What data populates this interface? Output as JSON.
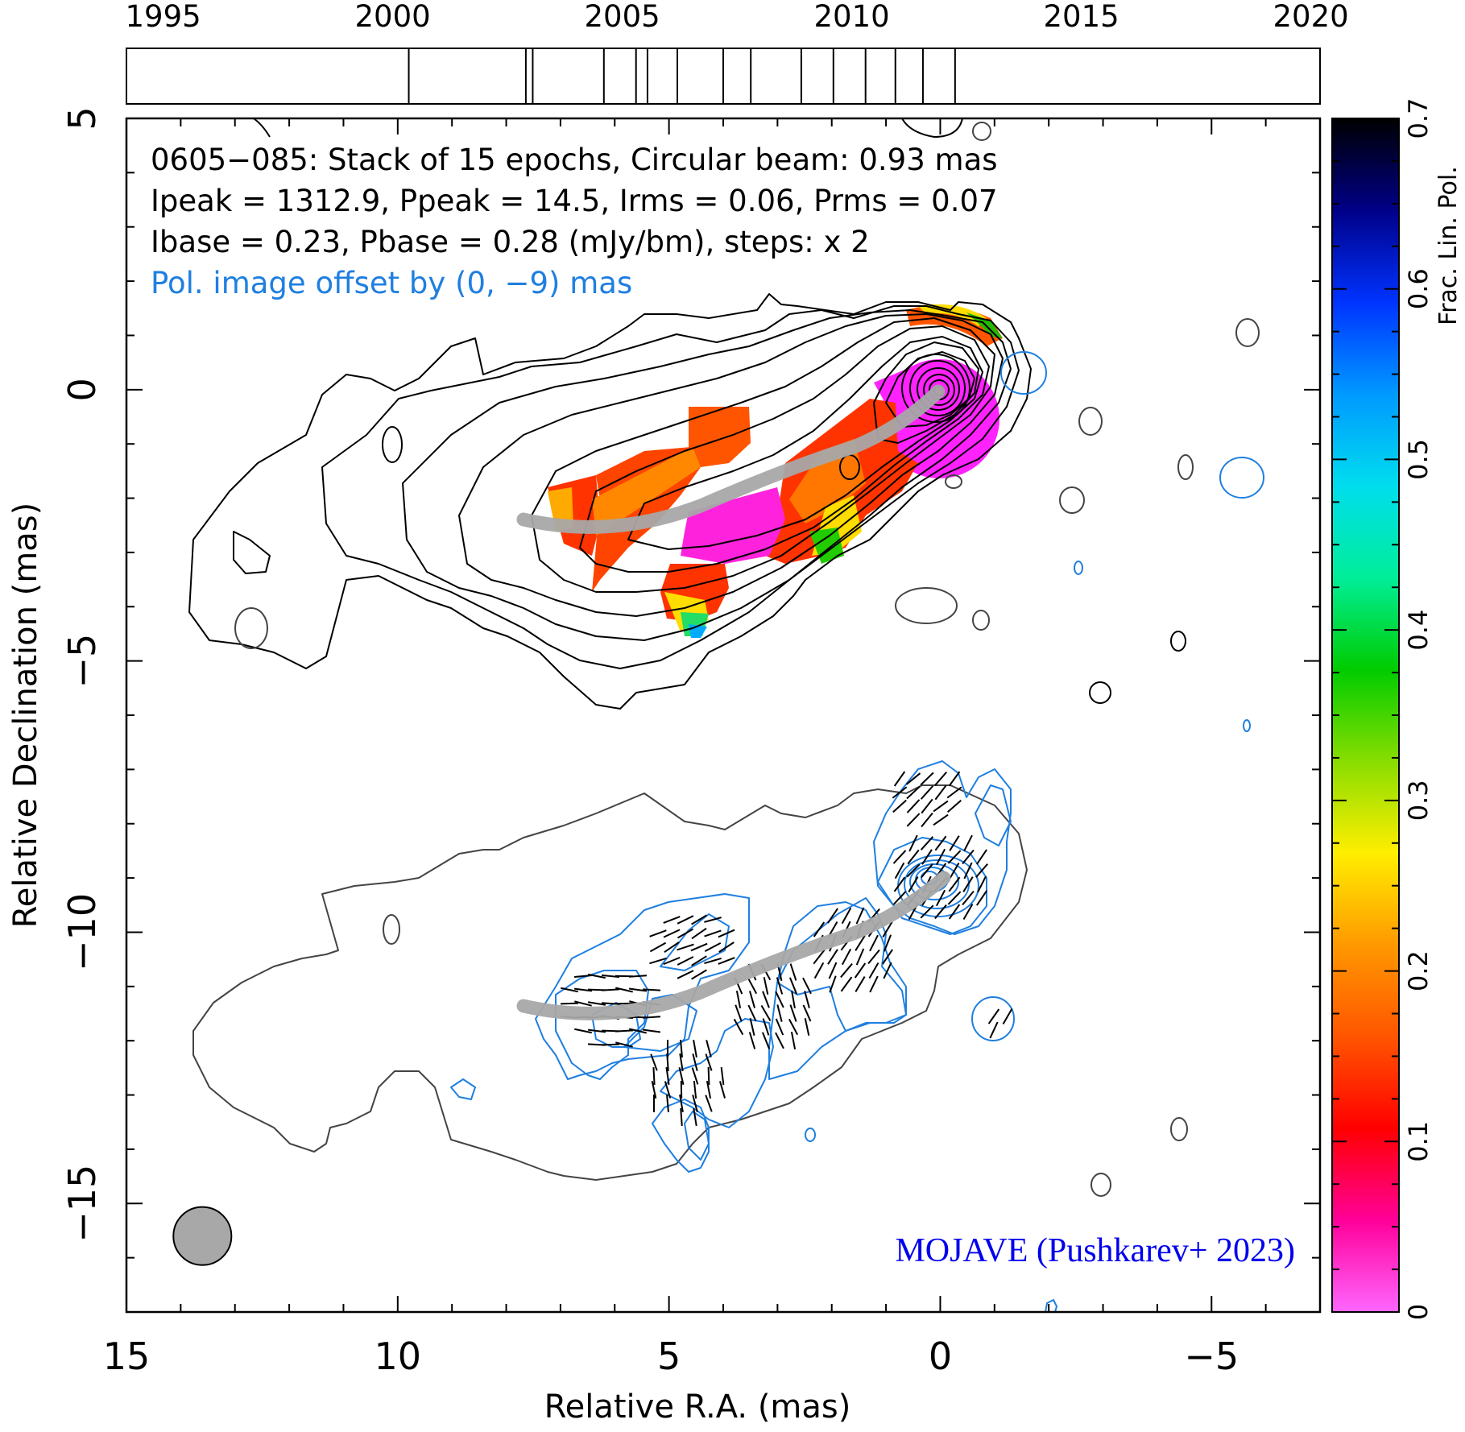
{
  "chart_data": [
    {
      "type": "timeline",
      "axis_ticks": [
        "1995",
        "2000",
        "2005",
        "2010",
        "2015",
        "2020"
      ],
      "xlim": [
        1994.2,
        2020.2
      ],
      "epochs": [
        2000.35,
        2002.9,
        2003.05,
        2004.6,
        2005.3,
        2005.55,
        2006.2,
        2007.2,
        2007.8,
        2008.9,
        2009.6,
        2010.3,
        2010.95,
        2011.55,
        2012.25
      ]
    },
    {
      "type": "contour-map",
      "xlabel": "Relative R.A. (mas)",
      "ylabel": "Relative Declination (mas)",
      "xlim": [
        15,
        -7
      ],
      "ylim": [
        -17,
        5
      ],
      "x_ticks": [
        15,
        10,
        5,
        0,
        -5
      ],
      "x_tick_labels": [
        "15",
        "10",
        "5",
        "0",
        "−5"
      ],
      "y_ticks": [
        5,
        0,
        -5,
        -10,
        -15
      ],
      "y_tick_labels": [
        "5",
        "0",
        "−5",
        "−10",
        "−15"
      ],
      "annotation_lines": [
        "0605−085: Stack of 15 epochs, Circular beam: 0.93 mas",
        "Ipeak = 1312.9, Ppeak = 14.5, Irms = 0.06, Prms = 0.07",
        "Ibase = 0.23, Pbase = 0.28 (mJy/bm), steps: x 2",
        "Pol. image offset by (0, −9) mas"
      ],
      "credit": "MOJAVE (Pushkarev+ 2023)",
      "beam_diameter_mas": 0.93,
      "beam_center_mas": [
        13.6,
        -15.6
      ],
      "core_mas": [
        0,
        0
      ],
      "ridge_line_mas": [
        [
          7.5,
          -2.5
        ],
        [
          6,
          -2.65
        ],
        [
          4.5,
          -2.45
        ],
        [
          3,
          -2.0
        ],
        [
          1.6,
          -1.45
        ],
        [
          0.8,
          -0.8
        ],
        [
          0,
          -0.1
        ]
      ],
      "jet_axis_pa_deg": -115,
      "colors": {
        "total_intensity_contours": "#000000",
        "polarization_contours": "#1f7fe0",
        "lower_panel_contour": "#444444",
        "ridge_line": "#a8a8a8",
        "pol_offset_note": "#1f7fe0",
        "credit": "#0000ee"
      }
    },
    {
      "type": "colorbar",
      "label": "Frac. Lin. Pol.",
      "range": [
        0,
        0.7
      ],
      "ticks": [
        "0",
        "0.1",
        "0.2",
        "0.3",
        "0.4",
        "0.5",
        "0.6",
        "0.7"
      ],
      "colors": [
        "#ff66ff",
        "#ff0099",
        "#ff0000",
        "#ff5500",
        "#ff9900",
        "#ffee00",
        "#88dd00",
        "#00cc00",
        "#00ee99",
        "#00ddee",
        "#0099ff",
        "#0033ff",
        "#000088",
        "#000000"
      ]
    }
  ]
}
